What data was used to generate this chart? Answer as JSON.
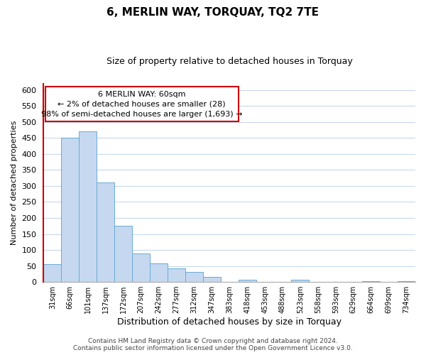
{
  "title": "6, MERLIN WAY, TORQUAY, TQ2 7TE",
  "subtitle": "Size of property relative to detached houses in Torquay",
  "xlabel": "Distribution of detached houses by size in Torquay",
  "ylabel": "Number of detached properties",
  "bar_labels": [
    "31sqm",
    "66sqm",
    "101sqm",
    "137sqm",
    "172sqm",
    "207sqm",
    "242sqm",
    "277sqm",
    "312sqm",
    "347sqm",
    "383sqm",
    "418sqm",
    "453sqm",
    "488sqm",
    "523sqm",
    "558sqm",
    "593sqm",
    "629sqm",
    "664sqm",
    "699sqm",
    "734sqm"
  ],
  "bar_values": [
    55,
    450,
    470,
    310,
    175,
    88,
    58,
    42,
    32,
    16,
    0,
    7,
    1,
    0,
    7,
    1,
    0,
    0,
    2,
    0,
    2
  ],
  "bar_color": "#c5d8f0",
  "bar_edge_color": "#6aaad4",
  "red_line_color": "#cc0000",
  "ylim": [
    0,
    620
  ],
  "yticks": [
    0,
    50,
    100,
    150,
    200,
    250,
    300,
    350,
    400,
    450,
    500,
    550,
    600
  ],
  "annotation_text": "6 MERLIN WAY: 60sqm\n← 2% of detached houses are smaller (28)\n98% of semi-detached houses are larger (1,693) →",
  "annotation_box_edge": "#cc0000",
  "footer_line1": "Contains HM Land Registry data © Crown copyright and database right 2024.",
  "footer_line2": "Contains public sector information licensed under the Open Government Licence v3.0.",
  "grid_color": "#c8d8e8",
  "background_color": "#ffffff",
  "title_fontsize": 11,
  "subtitle_fontsize": 9,
  "ylabel_fontsize": 8,
  "xlabel_fontsize": 9,
  "tick_fontsize": 8,
  "xtick_fontsize": 7,
  "annotation_fontsize": 8,
  "footer_fontsize": 6.5
}
